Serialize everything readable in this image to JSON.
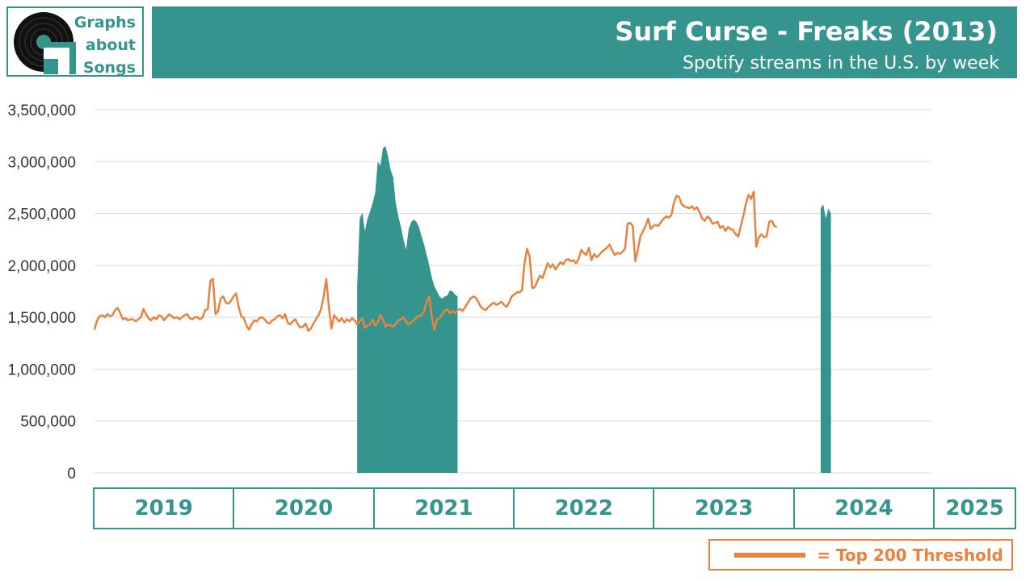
{
  "brand": {
    "lines": [
      "Graphs",
      "about",
      "Songs"
    ],
    "color": "#35958e"
  },
  "header": {
    "title": "Surf Curse - Freaks (2013)",
    "subtitle": "Spotify streams in the U.S. by week"
  },
  "legend": {
    "label": "= Top 200 Threshold",
    "color": "#e8833f"
  },
  "years": [
    {
      "label": "2019",
      "weeks": 52
    },
    {
      "label": "2020",
      "weeks": 52
    },
    {
      "label": "2021",
      "weeks": 52
    },
    {
      "label": "2022",
      "weeks": 52
    },
    {
      "label": "2023",
      "weeks": 52
    },
    {
      "label": "2024",
      "weeks": 52
    },
    {
      "label": "2025",
      "weeks": 30
    }
  ],
  "chart_data": {
    "type": "area",
    "ylim": [
      0,
      3500000
    ],
    "yticks": [
      0,
      500000,
      1000000,
      1500000,
      2000000,
      2500000,
      3000000,
      3500000
    ],
    "ytick_labels": [
      "0",
      "500,000",
      "1,000,000",
      "1,500,000",
      "2,000,000",
      "2,500,000",
      "3,000,000",
      "3,500,000"
    ],
    "grid": true,
    "series": [
      {
        "kind": "area",
        "color": "#35958e",
        "segments": [
          {
            "start": "2020-12-14",
            "values": [
              1800000,
              2450000,
              2510000,
              2330000,
              2450000,
              2520000,
              2600000,
              2700000,
              3000000,
              2960000,
              3130000,
              3150000,
              3050000,
              2920000,
              2850000,
              2600000,
              2470000,
              2370000,
              2250000,
              2150000,
              2350000,
              2420000,
              2440000,
              2420000,
              2370000,
              2280000,
              2200000,
              2100000,
              2000000,
              1880000,
              1800000,
              1750000,
              1700000,
              1680000,
              1700000,
              1710000,
              1760000,
              1750000,
              1720000,
              1700000
            ]
          },
          {
            "start": "2024-05-27",
            "values": [
              2550000,
              2590000,
              2450000,
              2550000,
              2500000
            ]
          }
        ]
      },
      {
        "kind": "line",
        "name": "Top 200 Threshold",
        "color": "#e8833f",
        "start": "2018-12-31",
        "values": [
          1380000,
          1470000,
          1510000,
          1520000,
          1500000,
          1530000,
          1510000,
          1520000,
          1570000,
          1590000,
          1540000,
          1480000,
          1490000,
          1470000,
          1480000,
          1480000,
          1460000,
          1480000,
          1500000,
          1580000,
          1530000,
          1490000,
          1470000,
          1500000,
          1480000,
          1520000,
          1510000,
          1470000,
          1500000,
          1530000,
          1510000,
          1490000,
          1500000,
          1480000,
          1500000,
          1520000,
          1530000,
          1490000,
          1480000,
          1500000,
          1500000,
          1480000,
          1500000,
          1570000,
          1580000,
          1850000,
          1870000,
          1530000,
          1560000,
          1680000,
          1700000,
          1640000,
          1630000,
          1660000,
          1700000,
          1730000,
          1600000,
          1510000,
          1490000,
          1420000,
          1380000,
          1430000,
          1470000,
          1460000,
          1490000,
          1500000,
          1480000,
          1450000,
          1440000,
          1470000,
          1480000,
          1510000,
          1520000,
          1490000,
          1530000,
          1450000,
          1430000,
          1460000,
          1480000,
          1430000,
          1400000,
          1410000,
          1440000,
          1370000,
          1390000,
          1440000,
          1480000,
          1520000,
          1580000,
          1700000,
          1870000,
          1600000,
          1390000,
          1520000,
          1490000,
          1460000,
          1490000,
          1450000,
          1480000,
          1460000,
          1490000,
          1470000,
          1430000,
          1460000,
          1490000,
          1400000,
          1420000,
          1430000,
          1480000,
          1420000,
          1450000,
          1520000,
          1480000,
          1410000,
          1430000,
          1420000,
          1410000,
          1440000,
          1470000,
          1480000,
          1500000,
          1460000,
          1430000,
          1450000,
          1470000,
          1500000,
          1510000,
          1520000,
          1560000,
          1650000,
          1700000,
          1500000,
          1380000,
          1480000,
          1490000,
          1530000,
          1560000,
          1580000,
          1540000,
          1560000,
          1540000,
          1570000,
          1580000,
          1560000,
          1600000,
          1640000,
          1680000,
          1700000,
          1690000,
          1650000,
          1600000,
          1580000,
          1570000,
          1600000,
          1620000,
          1640000,
          1620000,
          1630000,
          1650000,
          1620000,
          1600000,
          1640000,
          1700000,
          1720000,
          1740000,
          1740000,
          1760000,
          2020000,
          2160000,
          2080000,
          1780000,
          1790000,
          1850000,
          1900000,
          1880000,
          1950000,
          2020000,
          1980000,
          2010000,
          1960000,
          2000000,
          2030000,
          2010000,
          2050000,
          2060000,
          2040000,
          2050000,
          2020000,
          2060000,
          2150000,
          2120000,
          2100000,
          2170000,
          2050000,
          2110000,
          2080000,
          2100000,
          2130000,
          2150000,
          2170000,
          2200000,
          2150000,
          2100000,
          2120000,
          2110000,
          2130000,
          2160000,
          2400000,
          2410000,
          2380000,
          2040000,
          2150000,
          2280000,
          2330000,
          2380000,
          2450000,
          2350000,
          2380000,
          2390000,
          2380000,
          2420000,
          2450000,
          2470000,
          2460000,
          2480000,
          2600000,
          2670000,
          2660000,
          2590000,
          2570000,
          2560000,
          2550000,
          2570000,
          2540000,
          2560000,
          2510000,
          2450000,
          2430000,
          2470000,
          2450000,
          2400000,
          2410000,
          2420000,
          2360000,
          2380000,
          2330000,
          2370000,
          2350000,
          2340000,
          2300000,
          2280000,
          2380000,
          2480000,
          2600000,
          2680000,
          2640000,
          2710000,
          2180000,
          2270000,
          2300000,
          2270000,
          2280000,
          2420000,
          2430000,
          2380000,
          2370000
        ]
      }
    ]
  }
}
